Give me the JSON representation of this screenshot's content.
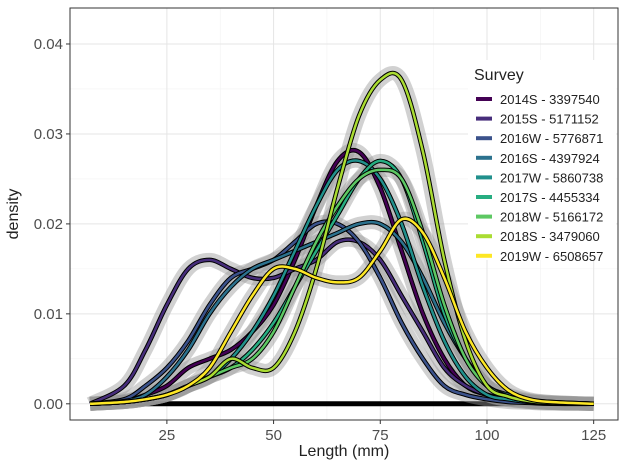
{
  "chart_data": {
    "type": "line",
    "x_label": "Length (mm)",
    "y_label": "density",
    "legend_title": "Survey",
    "x": [
      7,
      15,
      20,
      25,
      30,
      35,
      40,
      45,
      50,
      55,
      60,
      65,
      70,
      75,
      80,
      85,
      90,
      95,
      100,
      105,
      110,
      115,
      125
    ],
    "series": [
      {
        "name": "2014S - 3397540",
        "color": "#440154",
        "values": [
          0,
          0.0003,
          0.001,
          0.002,
          0.004,
          0.005,
          0.006,
          0.008,
          0.011,
          0.016,
          0.022,
          0.027,
          0.028,
          0.024,
          0.017,
          0.01,
          0.005,
          0.002,
          0.001,
          0.0005,
          0.0002,
          0.0001,
          0
        ]
      },
      {
        "name": "2015S - 5171152",
        "color": "#472d7b",
        "values": [
          0,
          0.002,
          0.006,
          0.011,
          0.015,
          0.016,
          0.015,
          0.014,
          0.014,
          0.015,
          0.016,
          0.018,
          0.018,
          0.016,
          0.012,
          0.008,
          0.004,
          0.002,
          0.001,
          0.0004,
          0.0002,
          0.0001,
          0
        ]
      },
      {
        "name": "2016W - 5776871",
        "color": "#3b528b",
        "values": [
          0,
          0.0005,
          0.002,
          0.004,
          0.007,
          0.011,
          0.014,
          0.015,
          0.016,
          0.018,
          0.02,
          0.02,
          0.018,
          0.014,
          0.009,
          0.005,
          0.002,
          0.001,
          0.0005,
          0.0002,
          0.0001,
          0,
          0
        ]
      },
      {
        "name": "2016S - 4397924",
        "color": "#2c728e",
        "values": [
          0,
          0.0003,
          0.001,
          0.003,
          0.006,
          0.01,
          0.013,
          0.015,
          0.016,
          0.017,
          0.018,
          0.019,
          0.02,
          0.02,
          0.018,
          0.014,
          0.009,
          0.005,
          0.002,
          0.001,
          0.0004,
          0.0002,
          0
        ]
      },
      {
        "name": "2017W - 5860738",
        "color": "#21908c",
        "values": [
          0,
          0.0002,
          0.0005,
          0.001,
          0.002,
          0.003,
          0.005,
          0.008,
          0.012,
          0.017,
          0.022,
          0.026,
          0.027,
          0.025,
          0.02,
          0.013,
          0.007,
          0.003,
          0.001,
          0.0005,
          0.0002,
          0.0001,
          0
        ]
      },
      {
        "name": "2017S - 4455334",
        "color": "#27ad81",
        "values": [
          0,
          0.0002,
          0.0005,
          0.001,
          0.002,
          0.003,
          0.004,
          0.006,
          0.009,
          0.013,
          0.017,
          0.021,
          0.025,
          0.027,
          0.025,
          0.018,
          0.01,
          0.005,
          0.002,
          0.0008,
          0.0003,
          0.0001,
          0
        ]
      },
      {
        "name": "2018W - 5166172",
        "color": "#5dc863",
        "values": [
          0,
          0.0002,
          0.0005,
          0.001,
          0.002,
          0.003,
          0.004,
          0.005,
          0.008,
          0.013,
          0.018,
          0.022,
          0.025,
          0.026,
          0.025,
          0.019,
          0.011,
          0.005,
          0.002,
          0.0008,
          0.0003,
          0.0001,
          0
        ]
      },
      {
        "name": "2018S - 3479060",
        "color": "#aadc32",
        "values": [
          0,
          0.0002,
          0.0005,
          0.001,
          0.002,
          0.003,
          0.005,
          0.004,
          0.004,
          0.008,
          0.015,
          0.024,
          0.032,
          0.036,
          0.036,
          0.028,
          0.016,
          0.007,
          0.002,
          0.0008,
          0.0003,
          0.0001,
          0
        ]
      },
      {
        "name": "2019W - 6508657",
        "color": "#fde725",
        "values": [
          0,
          0.0002,
          0.0005,
          0.001,
          0.002,
          0.004,
          0.008,
          0.012,
          0.015,
          0.015,
          0.014,
          0.0135,
          0.014,
          0.017,
          0.0205,
          0.019,
          0.014,
          0.008,
          0.004,
          0.0015,
          0.0005,
          0.0002,
          0
        ]
      }
    ],
    "xlim": [
      2.3,
      130.7
    ],
    "ylim": [
      -0.0018,
      0.044
    ],
    "xticks": [
      25,
      50,
      75,
      100,
      125
    ],
    "yticks": [
      {
        "value": 0,
        "label": "0.00"
      },
      0.01,
      0.02,
      0.03,
      0.04
    ],
    "grid": true
  }
}
